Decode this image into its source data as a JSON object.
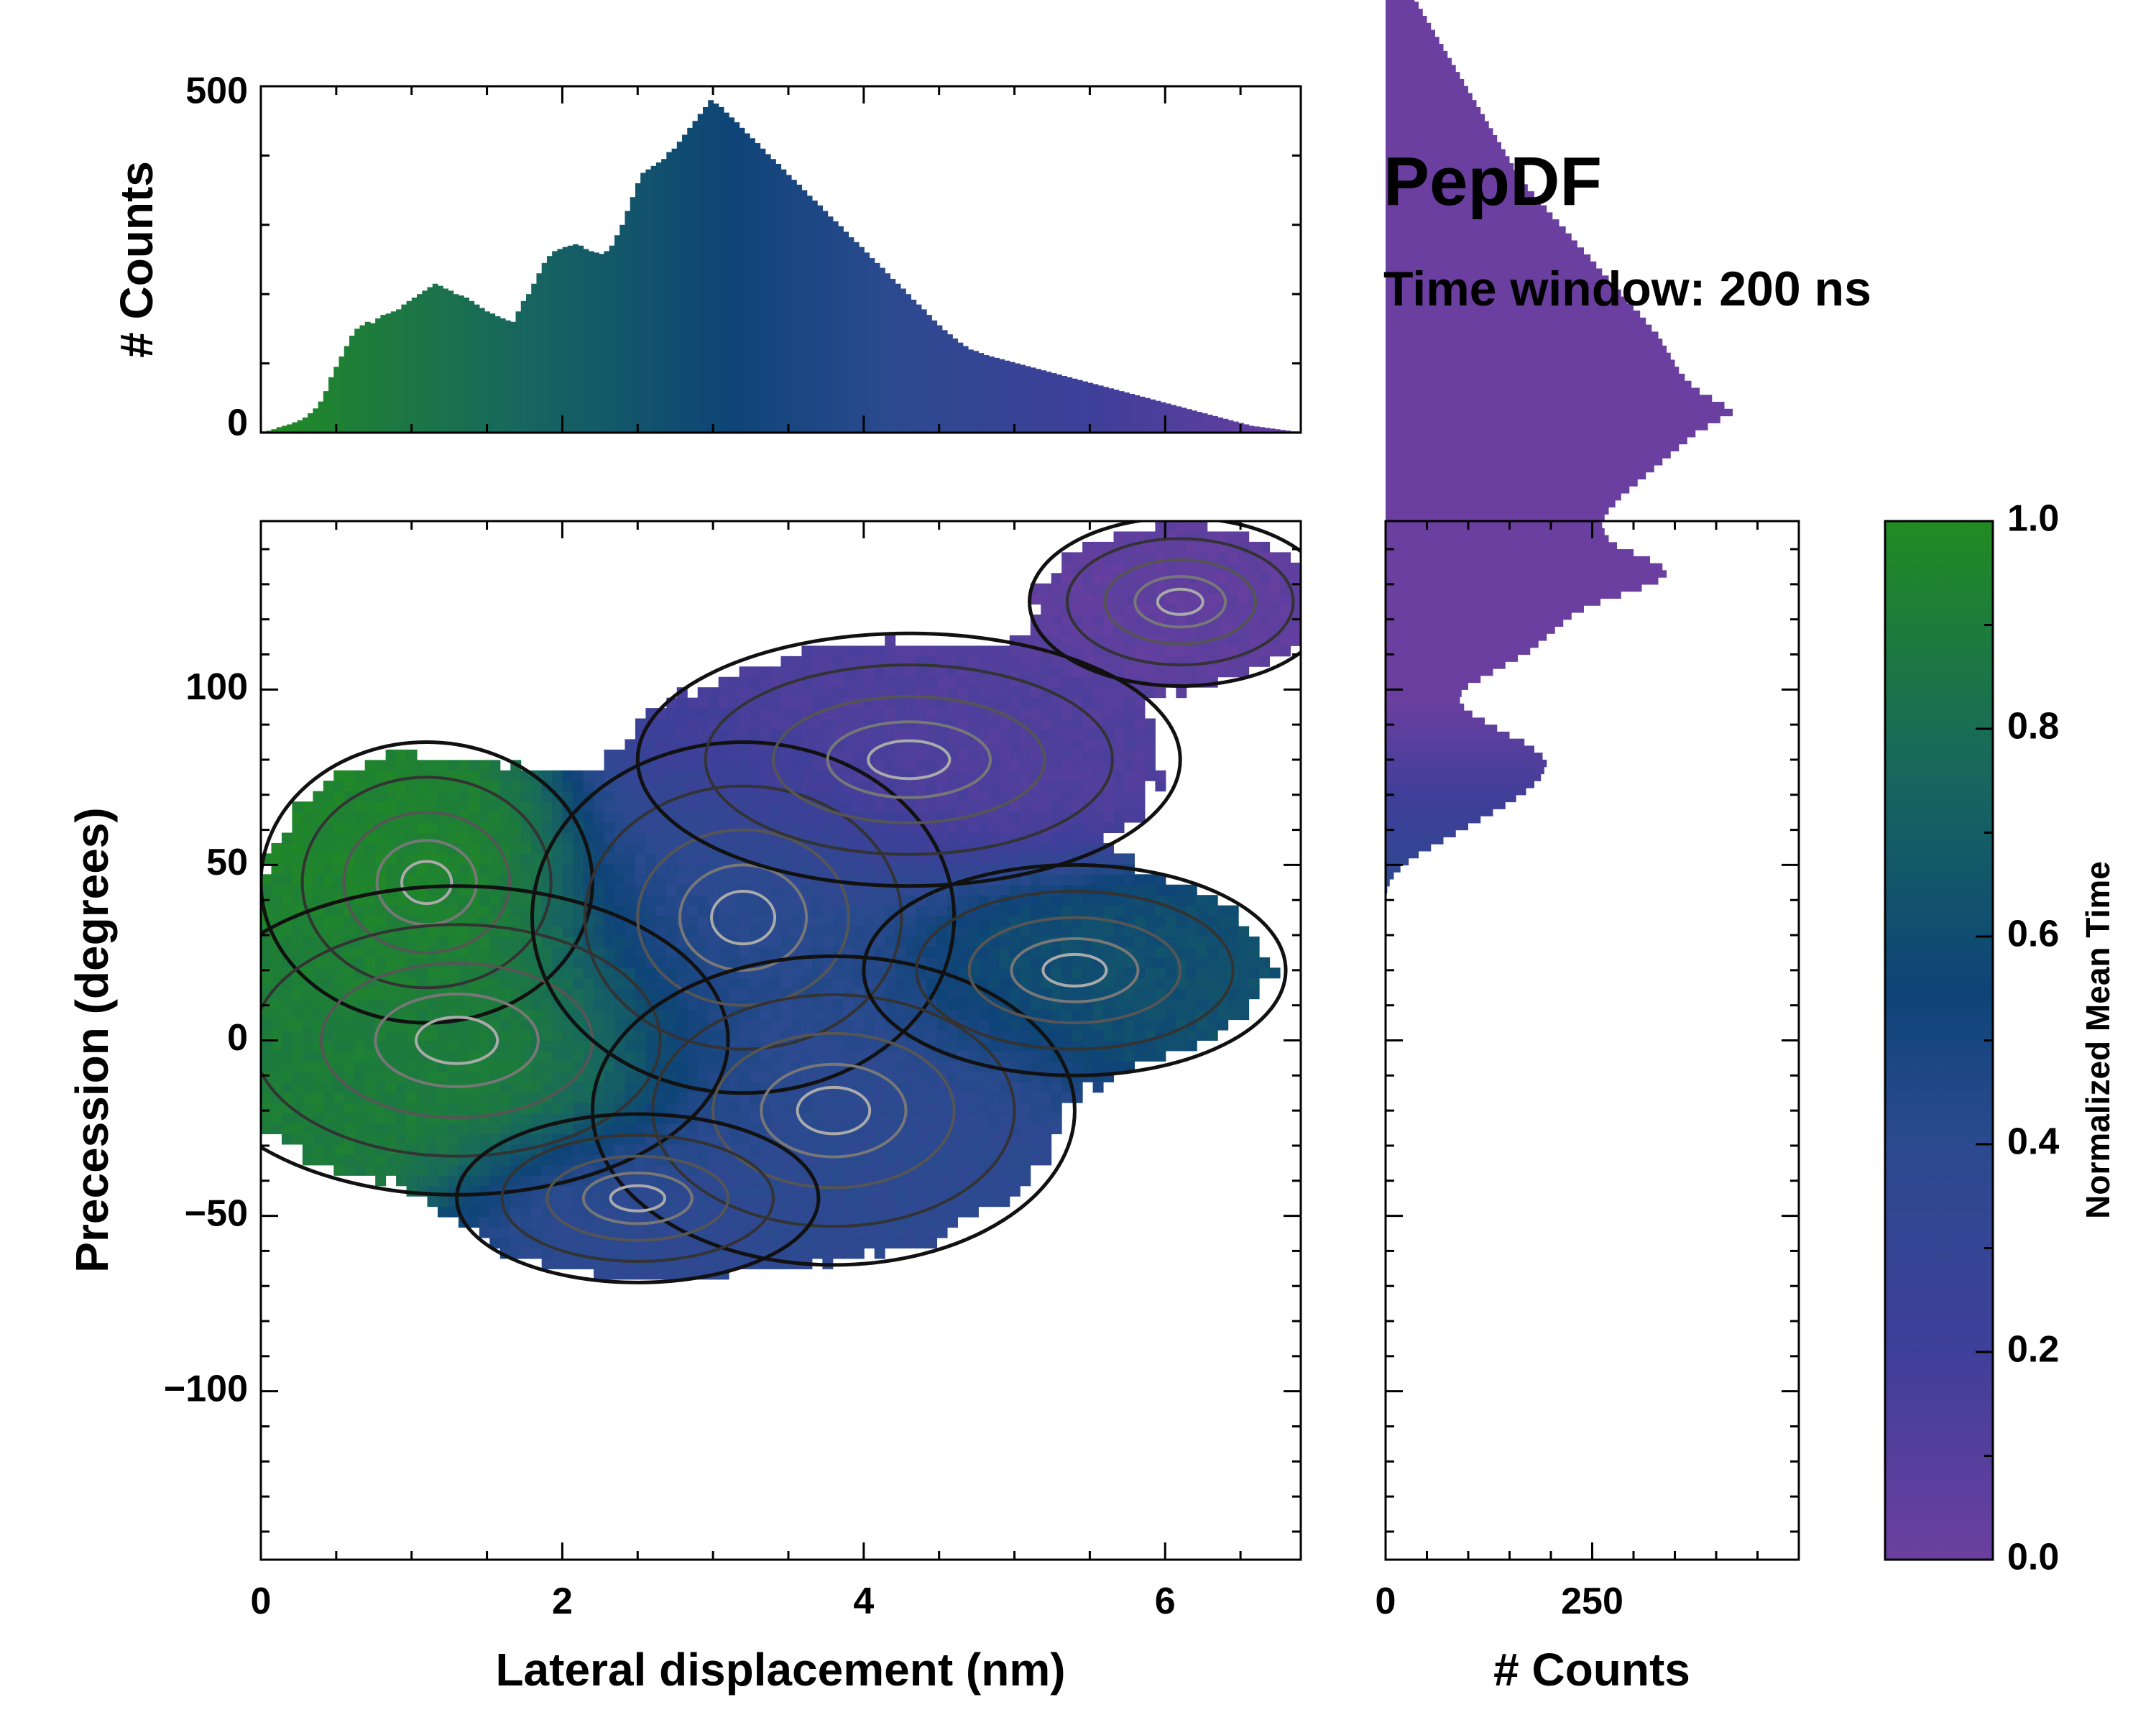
{
  "chart_data": {
    "type": "heatmap",
    "annotation": {
      "title": "PepDF",
      "subtitle": "Time window: 200 ns"
    },
    "main": {
      "xlabel": "Lateral displacement (nm)",
      "ylabel": "Precession (degrees)",
      "xlim": [
        0,
        6.9
      ],
      "ylim": [
        -148,
        148
      ],
      "xticks": [
        {
          "value": 0,
          "label": "0"
        },
        {
          "value": 2,
          "label": "2"
        },
        {
          "value": 4,
          "label": "4"
        },
        {
          "value": 6,
          "label": "6"
        }
      ],
      "yticks": [
        {
          "value": 100,
          "label": "100"
        },
        {
          "value": 50,
          "label": "50"
        },
        {
          "value": 0,
          "label": "0"
        },
        {
          "value": -50,
          "label": "−50"
        },
        {
          "value": -100,
          "label": "−100"
        }
      ],
      "regions": [
        {
          "name": "green-cluster-upper-left",
          "x": 1.1,
          "y": 45,
          "sx": 0.55,
          "sy": 20,
          "value": 0.95
        },
        {
          "name": "green-cluster-left",
          "x": 1.3,
          "y": 0,
          "sx": 0.9,
          "sy": 22,
          "value": 0.9
        },
        {
          "name": "blue-cluster-center",
          "x": 3.2,
          "y": 35,
          "sx": 0.7,
          "sy": 25,
          "value": 0.4
        },
        {
          "name": "blue-cluster-lower",
          "x": 3.8,
          "y": -20,
          "sx": 0.8,
          "sy": 22,
          "value": 0.38
        },
        {
          "name": "blue-cluster-bottom",
          "x": 2.5,
          "y": -45,
          "sx": 0.6,
          "sy": 12,
          "value": 0.36
        },
        {
          "name": "purple-cluster-top",
          "x": 4.3,
          "y": 80,
          "sx": 0.9,
          "sy": 18,
          "value": 0.12
        },
        {
          "name": "purple-cluster-corner",
          "x": 6.1,
          "y": 125,
          "sx": 0.5,
          "sy": 12,
          "value": 0.05
        },
        {
          "name": "teal-cluster-right",
          "x": 5.4,
          "y": 20,
          "sx": 0.7,
          "sy": 15,
          "value": 0.62
        }
      ]
    },
    "top_histogram": {
      "ylabel": "# Counts",
      "ylim": [
        0,
        500
      ],
      "yticks": [
        {
          "value": 0,
          "label": "0"
        },
        {
          "value": 500,
          "label": "500"
        }
      ],
      "x_start": 0,
      "bin_width": 0.0345,
      "counts": [
        2,
        3,
        5,
        8,
        10,
        12,
        15,
        18,
        22,
        28,
        35,
        45,
        60,
        80,
        95,
        110,
        125,
        140,
        150,
        155,
        160,
        158,
        165,
        170,
        172,
        175,
        178,
        185,
        190,
        195,
        200,
        205,
        210,
        215,
        212,
        208,
        205,
        200,
        198,
        195,
        190,
        185,
        180,
        175,
        172,
        168,
        165,
        162,
        160,
        175,
        190,
        200,
        215,
        230,
        245,
        255,
        262,
        265,
        268,
        270,
        272,
        270,
        265,
        262,
        260,
        258,
        262,
        270,
        285,
        300,
        320,
        340,
        360,
        375,
        380,
        385,
        390,
        395,
        405,
        410,
        420,
        430,
        440,
        450,
        460,
        470,
        480,
        475,
        470,
        462,
        455,
        448,
        440,
        432,
        425,
        418,
        410,
        402,
        395,
        388,
        380,
        372,
        365,
        358,
        350,
        342,
        335,
        328,
        320,
        312,
        305,
        298,
        290,
        282,
        275,
        268,
        260,
        252,
        245,
        238,
        230,
        222,
        215,
        208,
        200,
        192,
        185,
        178,
        170,
        162,
        155,
        148,
        142,
        136,
        130,
        125,
        120,
        118,
        115,
        112,
        110,
        108,
        106,
        104,
        102,
        100,
        98,
        96,
        94,
        92,
        90,
        88,
        86,
        84,
        82,
        80,
        78,
        76,
        74,
        72,
        70,
        68,
        66,
        64,
        62,
        60,
        58,
        56,
        54,
        52,
        50,
        48,
        46,
        44,
        42,
        40,
        38,
        36,
        34,
        32,
        30,
        28,
        26,
        24,
        22,
        20,
        18,
        16,
        14,
        12,
        10,
        9,
        8,
        7,
        6,
        5,
        4,
        3,
        2,
        2
      ]
    },
    "right_histogram": {
      "xlabel": "# Counts",
      "xlim": [
        0,
        500
      ],
      "xticks": [
        {
          "value": 0,
          "label": "0"
        },
        {
          "value": 250,
          "label": "250"
        }
      ],
      "y_start": -148,
      "bin_height": 2.0,
      "counts": [
        0,
        0,
        0,
        0,
        0,
        0,
        0,
        0,
        0,
        0,
        0,
        0,
        0,
        0,
        0,
        0,
        0,
        0,
        0,
        0,
        0,
        0,
        0,
        0,
        0,
        0,
        0,
        0,
        0,
        0,
        0,
        0,
        0,
        0,
        0,
        0,
        0,
        0,
        0,
        0,
        0,
        0,
        0,
        0,
        0,
        0,
        0,
        0,
        0,
        0,
        0,
        0,
        0,
        0,
        0,
        0,
        0,
        0,
        0,
        0,
        0,
        0,
        0,
        0,
        0,
        0,
        0,
        0,
        0,
        0,
        0,
        0,
        0,
        0,
        0,
        0,
        0,
        0,
        0,
        0,
        0,
        0,
        0,
        0,
        0,
        0,
        0,
        0,
        0,
        0,
        0,
        0,
        0,
        0,
        0,
        2,
        5,
        10,
        18,
        28,
        40,
        55,
        70,
        85,
        100,
        115,
        130,
        145,
        158,
        170,
        180,
        188,
        192,
        195,
        190,
        180,
        168,
        150,
        135,
        120,
        105,
        95,
        90,
        92,
        100,
        115,
        130,
        145,
        160,
        175,
        185,
        195,
        205,
        215,
        225,
        240,
        260,
        285,
        310,
        330,
        340,
        335,
        320,
        300,
        280,
        270,
        265,
        262,
        265,
        270,
        278,
        285,
        295,
        305,
        315,
        325,
        335,
        345,
        355,
        365,
        375,
        390,
        405,
        420,
        410,
        395,
        380,
        370,
        362,
        355,
        350,
        345,
        340,
        335,
        330,
        322,
        315,
        308,
        300,
        292,
        285,
        278,
        270,
        262,
        255,
        248,
        240,
        232,
        225,
        218,
        210,
        202,
        195,
        188,
        180,
        172,
        165,
        160,
        155,
        150,
        145,
        140,
        135,
        130,
        125,
        120,
        115,
        110,
        105,
        100,
        95,
        90,
        85,
        80,
        75,
        70,
        65,
        60,
        55,
        50,
        45,
        40,
        35,
        30,
        26,
        22,
        20,
        18,
        16,
        15,
        14,
        13,
        12,
        11,
        10,
        9,
        8,
        7,
        6,
        5,
        4,
        3,
        2,
        1,
        0,
        0,
        0,
        0,
        0,
        0,
        0,
        0,
        0,
        0,
        0,
        0,
        0,
        0,
        0,
        0,
        0
      ]
    },
    "colorbar": {
      "label": "Normalized Mean Time",
      "range": [
        0,
        1
      ],
      "ticks": [
        {
          "value": 0.0,
          "label": "0.0"
        },
        {
          "value": 0.2,
          "label": "0.2"
        },
        {
          "value": 0.4,
          "label": "0.4"
        },
        {
          "value": 0.6,
          "label": "0.6"
        },
        {
          "value": 0.8,
          "label": "0.8"
        },
        {
          "value": 1.0,
          "label": "1.0"
        }
      ],
      "colors": [
        "#6b3fa0",
        "#3f3f99",
        "#2b4a8f",
        "#0e4477",
        "#17665f",
        "#228b22"
      ]
    }
  }
}
